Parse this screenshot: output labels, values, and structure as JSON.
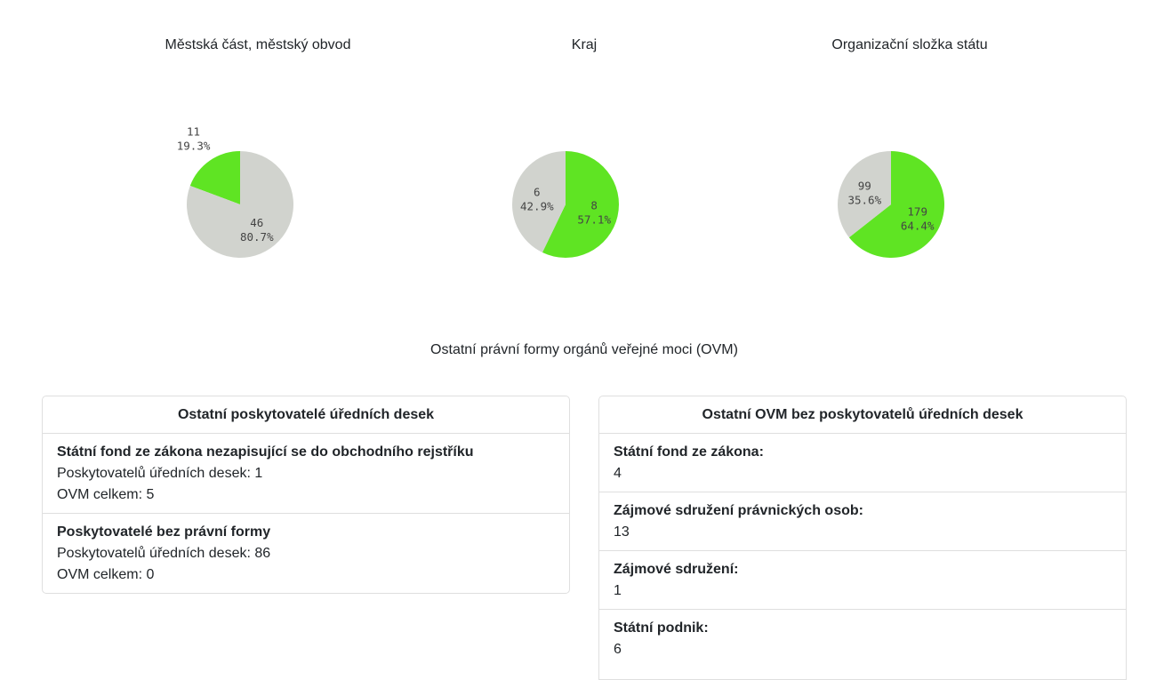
{
  "colors": {
    "green": "#5fe423",
    "gray": "#d1d3ce"
  },
  "chart_data": [
    {
      "type": "pie",
      "title": "Městská část, městský obvod",
      "slices": [
        {
          "value": 11,
          "percent": "19.3%",
          "color": "#5fe423"
        },
        {
          "value": 46,
          "percent": "80.7%",
          "color": "#d1d3ce"
        }
      ]
    },
    {
      "type": "pie",
      "title": "Kraj",
      "slices": [
        {
          "value": 8,
          "percent": "57.1%",
          "color": "#5fe423"
        },
        {
          "value": 6,
          "percent": "42.9%",
          "color": "#d1d3ce"
        }
      ]
    },
    {
      "type": "pie",
      "title": "Organizační složka státu",
      "slices": [
        {
          "value": 179,
          "percent": "64.4%",
          "color": "#5fe423"
        },
        {
          "value": 99,
          "percent": "35.6%",
          "color": "#d1d3ce"
        }
      ]
    }
  ],
  "section_title": "Ostatní právní formy orgánů veřejné moci (OVM)",
  "left_card": {
    "header": "Ostatní poskytovatelé úředních desek",
    "items": [
      {
        "name": "Státní fond ze zákona nezapisující se do obchodního rejstříku",
        "providers": "Poskytovatelů úředních desek: 1",
        "total": "OVM celkem: 5"
      },
      {
        "name": "Poskytovatelé bez právní formy",
        "providers": "Poskytovatelů úředních desek: 86",
        "total": "OVM celkem: 0"
      }
    ]
  },
  "right_card": {
    "header": "Ostatní OVM bez poskytovatelů úředních desek",
    "items": [
      {
        "name": "Státní fond ze zákona:",
        "value": "4"
      },
      {
        "name": "Zájmové sdružení právnických osob:",
        "value": "13"
      },
      {
        "name": "Zájmové sdružení:",
        "value": "1"
      },
      {
        "name": "Státní podnik:",
        "value": "6"
      }
    ]
  }
}
